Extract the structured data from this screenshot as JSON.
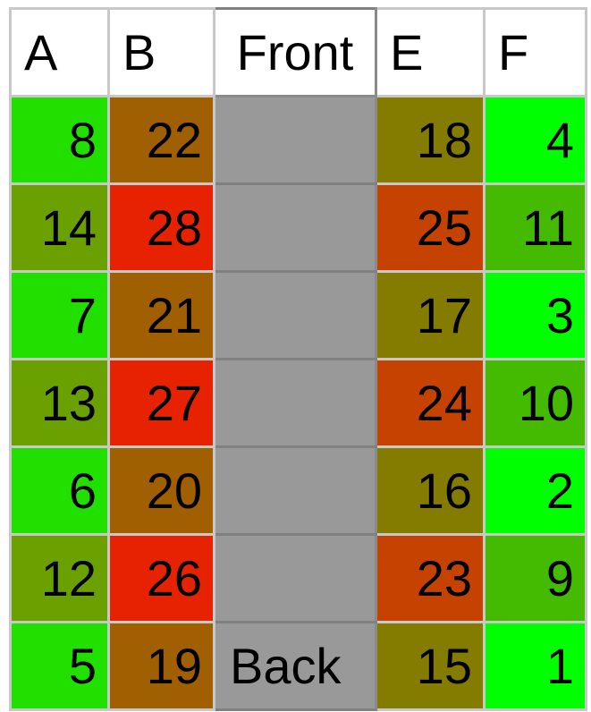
{
  "headers": {
    "col_a": "A",
    "col_b": "B",
    "aisle": "Front",
    "col_e": "E",
    "col_f": "F"
  },
  "aisle_bottom_label": "Back",
  "colors": {
    "bright_green": "#21e000",
    "olive_green": "#6aa100",
    "brown": "#a05f00",
    "red": "#e62200",
    "olive": "#847c00",
    "orange_red": "#c64200",
    "lime": "#00ff00",
    "mid_green": "#44bb00",
    "aisle_gray": "#999999",
    "header_bg": "#ffffff"
  },
  "rows": [
    {
      "a": {
        "value": "8",
        "color": "#21e000"
      },
      "b": {
        "value": "22",
        "color": "#a05f00"
      },
      "aisle": "",
      "e": {
        "value": "18",
        "color": "#847c00"
      },
      "f": {
        "value": "4",
        "color": "#00ff00"
      }
    },
    {
      "a": {
        "value": "14",
        "color": "#6aa100"
      },
      "b": {
        "value": "28",
        "color": "#e62200"
      },
      "aisle": "",
      "e": {
        "value": "25",
        "color": "#c64200"
      },
      "f": {
        "value": "11",
        "color": "#44bb00"
      }
    },
    {
      "a": {
        "value": "7",
        "color": "#21e000"
      },
      "b": {
        "value": "21",
        "color": "#a05f00"
      },
      "aisle": "",
      "e": {
        "value": "17",
        "color": "#847c00"
      },
      "f": {
        "value": "3",
        "color": "#00ff00"
      }
    },
    {
      "a": {
        "value": "13",
        "color": "#6aa100"
      },
      "b": {
        "value": "27",
        "color": "#e62200"
      },
      "aisle": "",
      "e": {
        "value": "24",
        "color": "#c64200"
      },
      "f": {
        "value": "10",
        "color": "#44bb00"
      }
    },
    {
      "a": {
        "value": "6",
        "color": "#21e000"
      },
      "b": {
        "value": "20",
        "color": "#a05f00"
      },
      "aisle": "",
      "e": {
        "value": "16",
        "color": "#847c00"
      },
      "f": {
        "value": "2",
        "color": "#00ff00"
      }
    },
    {
      "a": {
        "value": "12",
        "color": "#6aa100"
      },
      "b": {
        "value": "26",
        "color": "#e62200"
      },
      "aisle": "",
      "e": {
        "value": "23",
        "color": "#c64200"
      },
      "f": {
        "value": "9",
        "color": "#44bb00"
      }
    },
    {
      "a": {
        "value": "5",
        "color": "#21e000"
      },
      "b": {
        "value": "19",
        "color": "#a05f00"
      },
      "aisle": "Back",
      "e": {
        "value": "15",
        "color": "#847c00"
      },
      "f": {
        "value": "1",
        "color": "#00ff00"
      }
    }
  ]
}
